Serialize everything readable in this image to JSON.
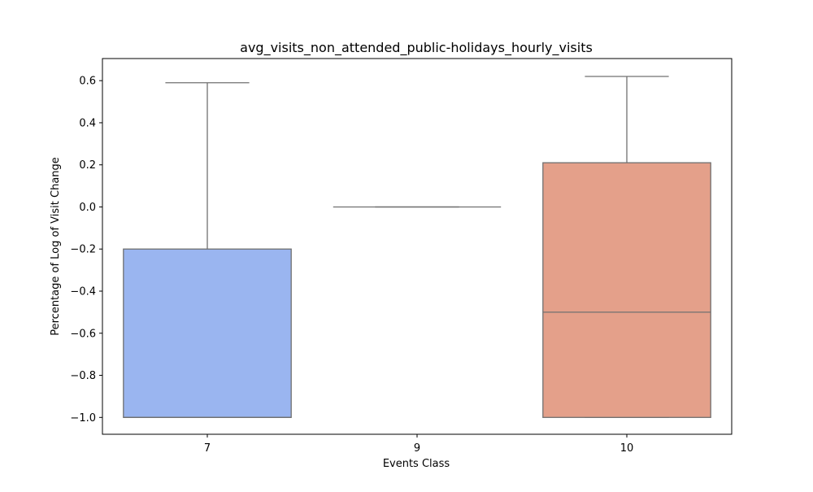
{
  "chart_data": {
    "type": "box",
    "title": "avg_visits_non_attended_public-holidays_hourly_visits",
    "xlabel": "Events Class",
    "ylabel": "Percentage of Log of Visit Change",
    "categories": [
      "7",
      "9",
      "10"
    ],
    "ylim": [
      -1.08,
      0.705
    ],
    "yticks": [
      -1.0,
      -0.8,
      -0.6,
      -0.4,
      -0.2,
      0.0,
      0.2,
      0.4,
      0.6
    ],
    "ytick_labels": [
      "−1.0",
      "−0.8",
      "−0.6",
      "−0.4",
      "−0.2",
      "0.0",
      "0.2",
      "0.4",
      "0.6"
    ],
    "grid": false,
    "boxes": [
      {
        "category": "7",
        "whisker_low": -1.0,
        "q1": -1.0,
        "median": -1.0,
        "q3": -0.2,
        "whisker_high": 0.59,
        "color": "#9ab5f0"
      },
      {
        "category": "9",
        "whisker_low": 0.0,
        "q1": 0.0,
        "median": 0.0,
        "q3": 0.0,
        "whisker_high": 0.0,
        "color": "#dcdcdc"
      },
      {
        "category": "10",
        "whisker_low": -1.0,
        "q1": -1.0,
        "median": -0.5,
        "q3": 0.21,
        "whisker_high": 0.62,
        "color": "#e4a08a"
      }
    ],
    "line_color": "#707070"
  }
}
